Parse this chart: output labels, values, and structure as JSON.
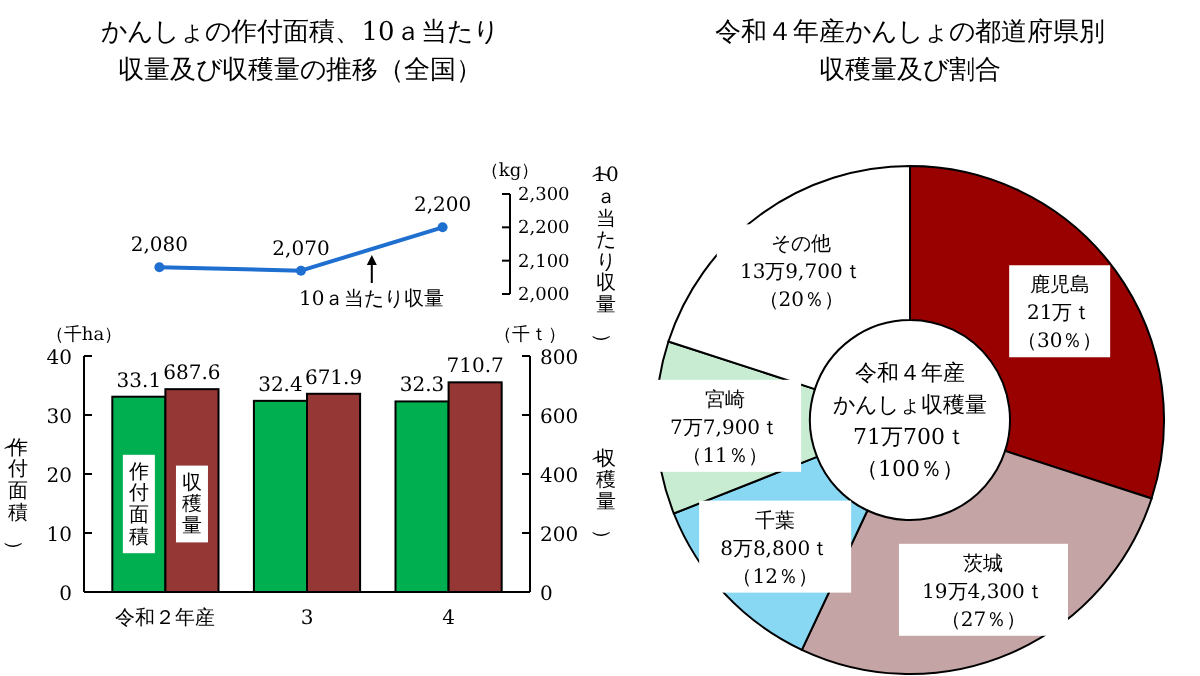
{
  "chart_data": [
    {
      "type": "line",
      "title": "かんしょの作付面積、10ａ当たり収量及び収穫量の推移（全国）",
      "categories": [
        null,
        null,
        null
      ],
      "ylabel": "（10ａ当たり収量）",
      "annotations": [
        "（kg）"
      ],
      "ylim": [
        2000,
        2300
      ],
      "yticks": [
        {
          "value": 2000,
          "label": "2,000"
        },
        {
          "value": 2100,
          "label": "2,100"
        },
        {
          "value": 2200,
          "label": "2,200"
        },
        {
          "value": 2300,
          "label": "2,300"
        }
      ],
      "marker": "circle",
      "series": [
        {
          "name": "10ａ当たり収量",
          "color": "#1f6fd0",
          "values": [
            2080,
            2070,
            2200
          ],
          "value_labels": [
            "2,080",
            "2,070",
            "2,200"
          ]
        }
      ]
    },
    {
      "type": "bar",
      "categories": [
        "令和２年産",
        "3",
        "4"
      ],
      "ylabel": "（作付面積）",
      "y2label": "（収穫量）",
      "annotations": [
        "（千ha）",
        "（千ｔ）"
      ],
      "ylim": [
        0,
        40
      ],
      "yticks": [
        0,
        10,
        20,
        30,
        40
      ],
      "y2lim": [
        0,
        800
      ],
      "y2ticks": [
        0,
        200,
        400,
        600,
        800
      ],
      "data_labels": true,
      "series": [
        {
          "name": "作付面積",
          "color": "#00b050",
          "values": [
            33.1,
            32.4,
            32.3
          ]
        },
        {
          "name": "収穫量",
          "color": "#953735",
          "axis": "y2",
          "values": [
            687.6,
            671.9,
            710.7
          ]
        }
      ]
    },
    {
      "type": "donut",
      "title": "令和４年産かんしょの都道府県別収穫量及び割合",
      "categories": [
        "鹿児島",
        "茨城",
        "千葉",
        "宮崎",
        "その他"
      ],
      "values": [
        30,
        27,
        12,
        11,
        20
      ],
      "colors": [
        "#990000",
        "#c4a4a4",
        "#88d8f4",
        "#c8ecd2",
        "#ffffff"
      ],
      "value_labels": [
        "21万ｔ（30％）",
        "19万4,300ｔ（27％）",
        "8万8,800ｔ（12％）",
        "7万7,900ｔ（11％）",
        "13万9,700ｔ（20％）"
      ],
      "annotations": [
        "令和４年産",
        "かんしょ収穫量",
        "71万700ｔ",
        "（100％）"
      ]
    }
  ]
}
